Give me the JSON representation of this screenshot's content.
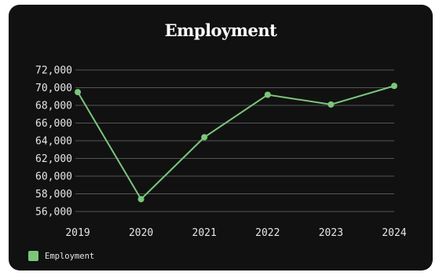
{
  "chart_data": {
    "type": "line",
    "title": "Employment",
    "categories": [
      "2019",
      "2020",
      "2021",
      "2022",
      "2023",
      "2024"
    ],
    "series": [
      {
        "name": "Employment",
        "values": [
          69500,
          57400,
          64400,
          69200,
          68100,
          70200
        ]
      }
    ],
    "yticks": [
      "56,000",
      "58,000",
      "60,000",
      "62,000",
      "64,000",
      "66,000",
      "68,000",
      "70,000",
      "72,000"
    ],
    "ylim": [
      56000,
      72000
    ],
    "grid": true,
    "legend": "bottom-left",
    "colors": {
      "background": "#111111",
      "line": "#7bc67b",
      "grid": "#555555",
      "text": "#e6e6e6"
    }
  }
}
